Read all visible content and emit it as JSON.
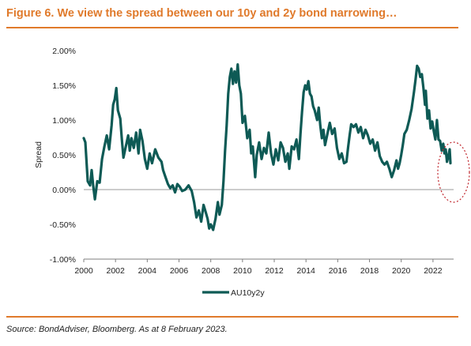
{
  "figure": {
    "title": "Figure 6. We view the spread between our 10y and 2y bond narrowing…",
    "source": "Source: BondAdviser, Bloomberg. As at 8 February 2023."
  },
  "colors": {
    "accent": "#e07a2b",
    "series": "#0e5a55",
    "annotation": "#c0262d",
    "zero_line": "#9a9a9a"
  },
  "chart_data": {
    "type": "line",
    "title": "",
    "xlabel": "",
    "ylabel": "Spread",
    "xlim": [
      2000,
      2023.3
    ],
    "ylim": [
      -1.0,
      2.0
    ],
    "x_ticks": [
      2000,
      2002,
      2004,
      2006,
      2008,
      2010,
      2012,
      2014,
      2016,
      2018,
      2020,
      2022
    ],
    "x_tick_labels": [
      "2000",
      "2002",
      "2004",
      "2006",
      "2008",
      "2010",
      "2012",
      "2014",
      "2016",
      "2018",
      "2020",
      "2022"
    ],
    "y_ticks": [
      -1.0,
      -0.5,
      0.0,
      0.5,
      1.0,
      1.5,
      2.0
    ],
    "y_tick_labels": [
      "-1.00%",
      "-0.50%",
      "0.00%",
      "0.50%",
      "1.00%",
      "1.50%",
      "2.00%"
    ],
    "grid": false,
    "legend_position": "bottom",
    "annotation": "dotted ellipse highlighting the latest values",
    "series": [
      {
        "name": "AU10y2y",
        "points": [
          [
            2000.0,
            0.74
          ],
          [
            2000.1,
            0.68
          ],
          [
            2000.25,
            0.12
          ],
          [
            2000.4,
            0.06
          ],
          [
            2000.5,
            0.28
          ],
          [
            2000.6,
            0.04
          ],
          [
            2000.7,
            -0.14
          ],
          [
            2000.85,
            0.12
          ],
          [
            2001.0,
            0.1
          ],
          [
            2001.15,
            0.44
          ],
          [
            2001.3,
            0.62
          ],
          [
            2001.45,
            0.78
          ],
          [
            2001.6,
            0.58
          ],
          [
            2001.75,
            0.92
          ],
          [
            2001.85,
            1.22
          ],
          [
            2001.95,
            1.3
          ],
          [
            2002.05,
            1.46
          ],
          [
            2002.15,
            1.14
          ],
          [
            2002.3,
            1.02
          ],
          [
            2002.4,
            0.72
          ],
          [
            2002.5,
            0.46
          ],
          [
            2002.65,
            0.62
          ],
          [
            2002.8,
            0.78
          ],
          [
            2002.9,
            0.56
          ],
          [
            2003.0,
            0.74
          ],
          [
            2003.15,
            0.6
          ],
          [
            2003.3,
            0.82
          ],
          [
            2003.45,
            0.52
          ],
          [
            2003.55,
            0.86
          ],
          [
            2003.7,
            0.7
          ],
          [
            2003.85,
            0.44
          ],
          [
            2004.0,
            0.3
          ],
          [
            2004.15,
            0.52
          ],
          [
            2004.3,
            0.38
          ],
          [
            2004.5,
            0.58
          ],
          [
            2004.7,
            0.46
          ],
          [
            2004.9,
            0.4
          ],
          [
            2005.0,
            0.28
          ],
          [
            2005.15,
            0.18
          ],
          [
            2005.3,
            0.08
          ],
          [
            2005.45,
            0.02
          ],
          [
            2005.6,
            0.06
          ],
          [
            2005.75,
            -0.04
          ],
          [
            2005.9,
            0.08
          ],
          [
            2006.05,
            0.04
          ],
          [
            2006.2,
            -0.02
          ],
          [
            2006.4,
            0.0
          ],
          [
            2006.6,
            0.06
          ],
          [
            2006.8,
            -0.02
          ],
          [
            2006.95,
            -0.18
          ],
          [
            2007.1,
            -0.4
          ],
          [
            2007.25,
            -0.3
          ],
          [
            2007.4,
            -0.46
          ],
          [
            2007.55,
            -0.22
          ],
          [
            2007.7,
            -0.34
          ],
          [
            2007.8,
            -0.42
          ],
          [
            2007.9,
            -0.56
          ],
          [
            2008.0,
            -0.5
          ],
          [
            2008.15,
            -0.58
          ],
          [
            2008.3,
            -0.42
          ],
          [
            2008.45,
            -0.18
          ],
          [
            2008.55,
            -0.36
          ],
          [
            2008.7,
            -0.22
          ],
          [
            2008.8,
            0.12
          ],
          [
            2008.9,
            0.56
          ],
          [
            2009.0,
            0.92
          ],
          [
            2009.1,
            1.38
          ],
          [
            2009.2,
            1.62
          ],
          [
            2009.3,
            1.74
          ],
          [
            2009.4,
            1.52
          ],
          [
            2009.5,
            1.7
          ],
          [
            2009.6,
            1.54
          ],
          [
            2009.7,
            1.8
          ],
          [
            2009.8,
            1.5
          ],
          [
            2009.9,
            1.38
          ],
          [
            2010.0,
            0.96
          ],
          [
            2010.15,
            1.06
          ],
          [
            2010.3,
            0.74
          ],
          [
            2010.45,
            0.86
          ],
          [
            2010.55,
            0.52
          ],
          [
            2010.65,
            0.62
          ],
          [
            2010.8,
            0.18
          ],
          [
            2010.9,
            0.5
          ],
          [
            2011.05,
            0.68
          ],
          [
            2011.2,
            0.44
          ],
          [
            2011.35,
            0.6
          ],
          [
            2011.5,
            0.52
          ],
          [
            2011.65,
            0.82
          ],
          [
            2011.8,
            0.52
          ],
          [
            2011.95,
            0.36
          ],
          [
            2012.1,
            0.58
          ],
          [
            2012.25,
            0.42
          ],
          [
            2012.4,
            0.68
          ],
          [
            2012.55,
            0.6
          ],
          [
            2012.7,
            0.4
          ],
          [
            2012.85,
            0.52
          ],
          [
            2012.95,
            0.3
          ],
          [
            2013.1,
            0.62
          ],
          [
            2013.25,
            0.58
          ],
          [
            2013.4,
            0.72
          ],
          [
            2013.55,
            0.44
          ],
          [
            2013.65,
            0.8
          ],
          [
            2013.75,
            1.12
          ],
          [
            2013.85,
            1.4
          ],
          [
            2013.95,
            1.5
          ],
          [
            2014.05,
            1.44
          ],
          [
            2014.15,
            1.56
          ],
          [
            2014.25,
            1.38
          ],
          [
            2014.35,
            1.34
          ],
          [
            2014.45,
            1.2
          ],
          [
            2014.55,
            1.14
          ],
          [
            2014.7,
            1.0
          ],
          [
            2014.8,
            1.18
          ],
          [
            2014.9,
            0.92
          ],
          [
            2015.0,
            0.74
          ],
          [
            2015.1,
            0.86
          ],
          [
            2015.2,
            0.64
          ],
          [
            2015.35,
            0.8
          ],
          [
            2015.5,
            0.96
          ],
          [
            2015.65,
            0.8
          ],
          [
            2015.8,
            0.88
          ],
          [
            2015.95,
            0.6
          ],
          [
            2016.1,
            0.44
          ],
          [
            2016.25,
            0.52
          ],
          [
            2016.4,
            0.38
          ],
          [
            2016.55,
            0.4
          ],
          [
            2016.65,
            0.6
          ],
          [
            2016.75,
            0.78
          ],
          [
            2016.85,
            0.94
          ],
          [
            2017.0,
            0.9
          ],
          [
            2017.15,
            0.94
          ],
          [
            2017.3,
            0.82
          ],
          [
            2017.45,
            0.9
          ],
          [
            2017.6,
            0.74
          ],
          [
            2017.75,
            0.86
          ],
          [
            2017.9,
            0.78
          ],
          [
            2018.05,
            0.66
          ],
          [
            2018.2,
            0.72
          ],
          [
            2018.35,
            0.56
          ],
          [
            2018.5,
            0.68
          ],
          [
            2018.65,
            0.48
          ],
          [
            2018.8,
            0.4
          ],
          [
            2018.95,
            0.36
          ],
          [
            2019.1,
            0.4
          ],
          [
            2019.25,
            0.3
          ],
          [
            2019.4,
            0.18
          ],
          [
            2019.55,
            0.28
          ],
          [
            2019.7,
            0.42
          ],
          [
            2019.8,
            0.3
          ],
          [
            2019.9,
            0.38
          ],
          [
            2020.0,
            0.5
          ],
          [
            2020.1,
            0.64
          ],
          [
            2020.2,
            0.8
          ],
          [
            2020.35,
            0.86
          ],
          [
            2020.5,
            1.0
          ],
          [
            2020.65,
            1.16
          ],
          [
            2020.8,
            1.4
          ],
          [
            2020.9,
            1.58
          ],
          [
            2021.0,
            1.78
          ],
          [
            2021.1,
            1.74
          ],
          [
            2021.2,
            1.62
          ],
          [
            2021.3,
            1.66
          ],
          [
            2021.4,
            1.46
          ],
          [
            2021.5,
            1.22
          ],
          [
            2021.55,
            1.42
          ],
          [
            2021.65,
            1.02
          ],
          [
            2021.75,
            1.14
          ],
          [
            2021.85,
            0.88
          ],
          [
            2021.95,
            0.98
          ],
          [
            2022.05,
            0.84
          ],
          [
            2022.15,
            0.72
          ],
          [
            2022.25,
            1.0
          ],
          [
            2022.35,
            0.72
          ],
          [
            2022.45,
            0.7
          ],
          [
            2022.55,
            0.56
          ],
          [
            2022.65,
            0.66
          ],
          [
            2022.72,
            0.52
          ],
          [
            2022.8,
            0.58
          ],
          [
            2022.88,
            0.4
          ],
          [
            2022.95,
            0.46
          ],
          [
            2023.05,
            0.58
          ],
          [
            2023.1,
            0.38
          ]
        ]
      }
    ]
  }
}
